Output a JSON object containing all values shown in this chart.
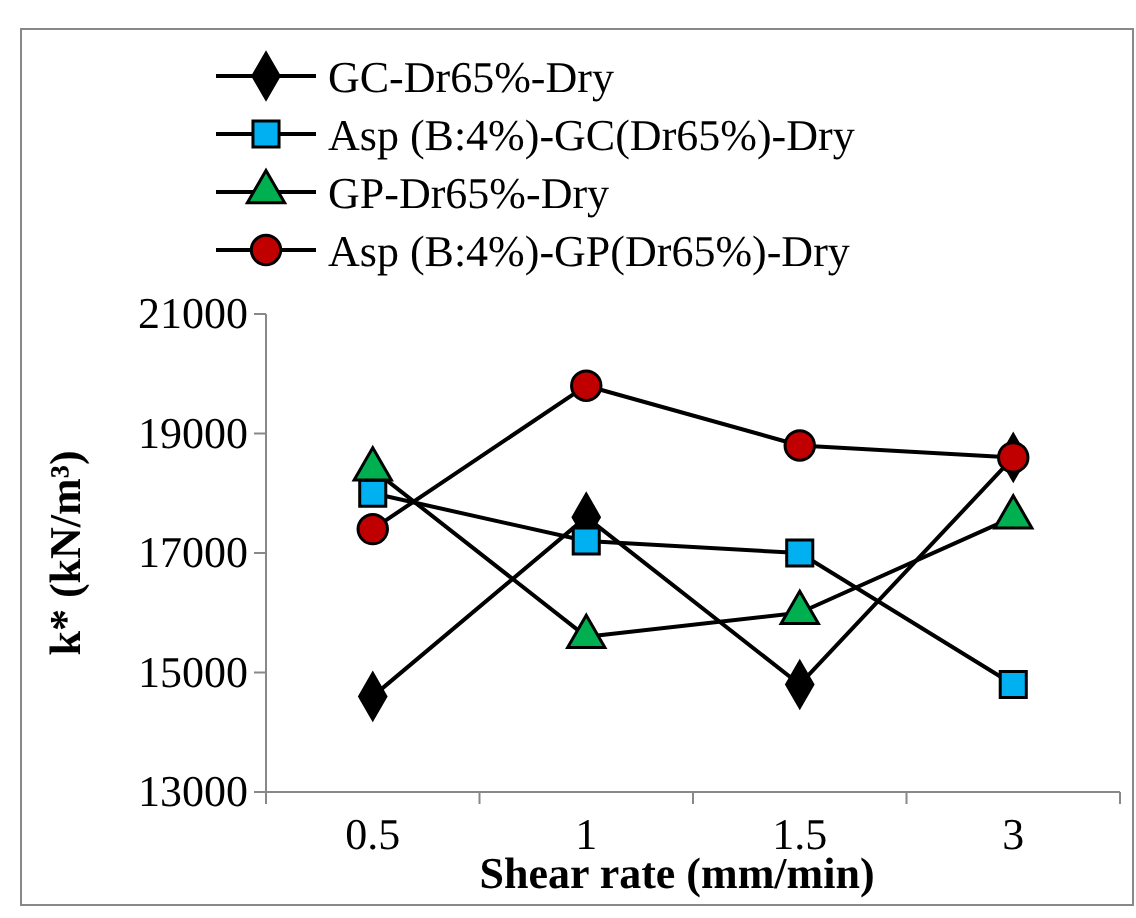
{
  "chart_data": {
    "type": "line",
    "xlabel": "Shear rate (mm/min)",
    "ylabel": "k* (kN/m³)",
    "categories": [
      "0.5",
      "1",
      "1.5",
      "3"
    ],
    "ylim": [
      13000,
      21000
    ],
    "yticks": [
      13000,
      15000,
      17000,
      19000,
      21000
    ],
    "grid": false,
    "legend": "top",
    "line_style": "solid",
    "series": [
      {
        "name": "GC-Dr65%-Dry",
        "color": "#000000",
        "marker": "diamond",
        "values": [
          14600,
          17600,
          14800,
          18600
        ]
      },
      {
        "name": "Asp (B:4%)-GC(Dr65%)-Dry",
        "color": "#00b0f0",
        "marker": "square",
        "values": [
          18000,
          17200,
          17000,
          14800
        ]
      },
      {
        "name": "GP-Dr65%-Dry",
        "color": "#00b050",
        "marker": "triangle",
        "values": [
          18400,
          15600,
          16000,
          17600
        ]
      },
      {
        "name": "Asp (B:4%)-GP(Dr65%)-Dry",
        "color": "#c00000",
        "marker": "circle",
        "values": [
          17400,
          19800,
          18800,
          18600
        ]
      }
    ]
  }
}
